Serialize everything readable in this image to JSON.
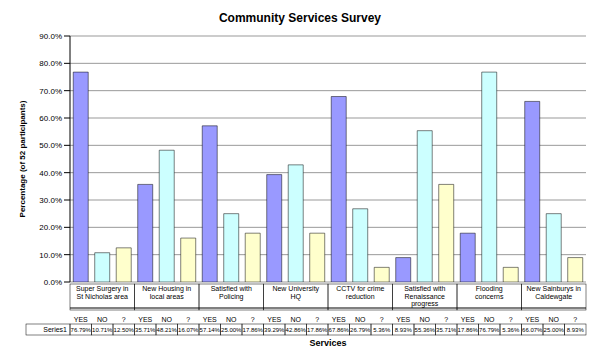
{
  "chart_data": {
    "type": "bar",
    "title": "Community Services Survey",
    "x_label": "Services",
    "y_label": "Percentage (of 52 participants)",
    "group_labels": [
      "Super Surgery in St Nicholas area",
      "New Housing in local areas",
      "Satisfied with Policing",
      "New University HQ",
      "CCTV for crime reduction",
      "Satisfied with Renaissance progress",
      "Flooding concerns",
      "New Sainburys in Caldewgate"
    ],
    "categories": [
      "YES",
      "NO",
      "?",
      "YES",
      "NO",
      "?",
      "YES",
      "NO",
      "?",
      "YES",
      "NO",
      "?",
      "YES",
      "NO",
      "?",
      "YES",
      "NO",
      "?",
      "YES",
      "NO",
      "?",
      "YES",
      "NO",
      "?"
    ],
    "series": [
      {
        "name": "Series1",
        "values": [
          76.79,
          10.71,
          12.5,
          35.71,
          48.21,
          16.07,
          57.14,
          25.0,
          17.86,
          39.29,
          42.86,
          17.86,
          67.86,
          26.79,
          5.36,
          8.93,
          55.36,
          35.71,
          17.86,
          76.79,
          5.36,
          66.07,
          25.0,
          8.93
        ],
        "value_labels": [
          "76.79%",
          "10.71%",
          "12.50%",
          "35.71%",
          "48.21%",
          "16.07%",
          "57.14%",
          "25.00%",
          "17.86%",
          "39.29%",
          "42.86%",
          "17.86%",
          "67.86%",
          "26.79%",
          "5.36%",
          "8.93%",
          "55.36%",
          "35.71%",
          "17.86%",
          "76.79%",
          "5.36%",
          "66.07%",
          "25.00%",
          "8.93%"
        ],
        "colors": [
          "#9999ff",
          "#ccffff",
          "#ffffcc",
          "#9999ff",
          "#ccffff",
          "#ffffcc",
          "#9999ff",
          "#ccffff",
          "#ffffcc",
          "#9999ff",
          "#ccffff",
          "#ffffcc",
          "#9999ff",
          "#ccffff",
          "#ffffcc",
          "#9999ff",
          "#ccffff",
          "#ffffcc",
          "#9999ff",
          "#ccffff",
          "#ffffcc",
          "#9999ff",
          "#ccffff",
          "#ffffcc"
        ]
      }
    ],
    "ylim": [
      0,
      90
    ],
    "yticks": [
      {
        "value": 0,
        "label": "0.0%"
      },
      {
        "value": 10,
        "label": "10.0%"
      },
      {
        "value": 20,
        "label": "20.0%"
      },
      {
        "value": 30,
        "label": "30.0%"
      },
      {
        "value": 40,
        "label": "40.0%"
      },
      {
        "value": 50,
        "label": "50.0%"
      },
      {
        "value": 60,
        "label": "60.0%"
      },
      {
        "value": 70,
        "label": "70.0%"
      },
      {
        "value": 80,
        "label": "80.0%"
      },
      {
        "value": 90,
        "label": "90.0%"
      }
    ],
    "grid": true
  }
}
